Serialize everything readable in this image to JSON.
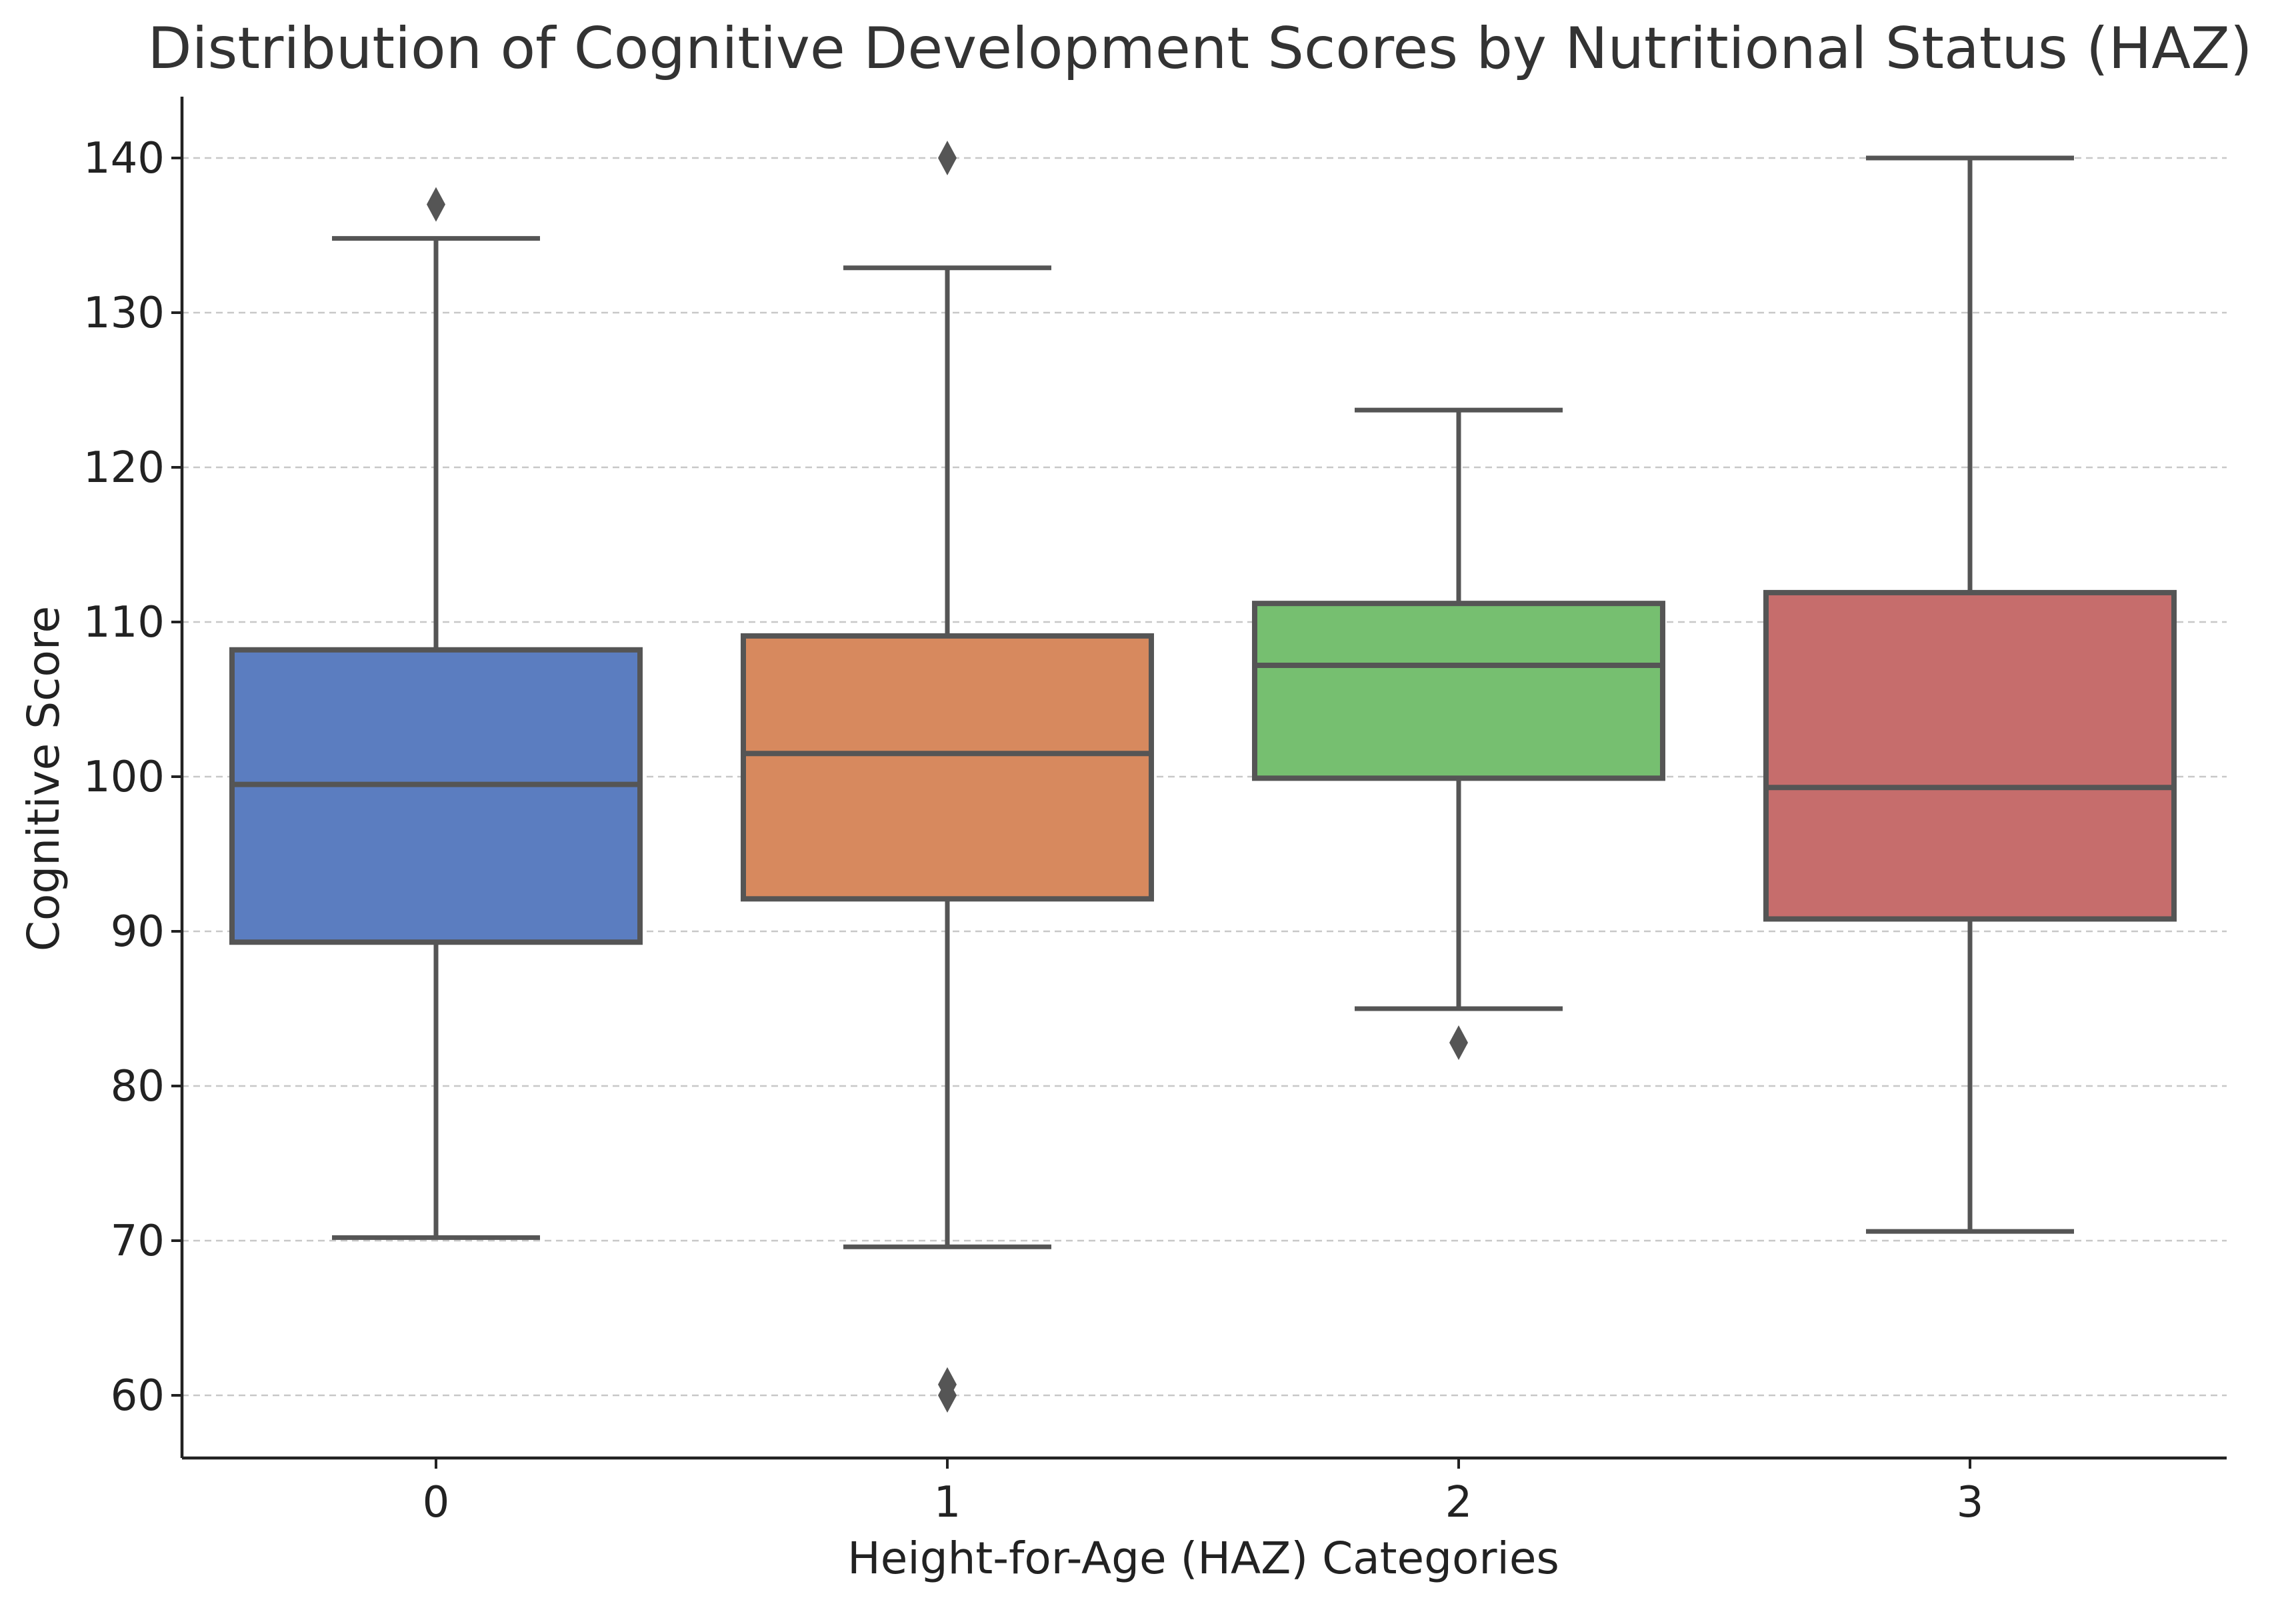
{
  "chart_data": {
    "type": "box",
    "title": "Distribution of Cognitive Development Scores by Nutritional Status (HAZ)",
    "xlabel": "Height-for-Age (HAZ) Categories",
    "ylabel": "Cognitive Score",
    "ylim": [
      56,
      144
    ],
    "yticks": [
      60,
      70,
      80,
      90,
      100,
      110,
      120,
      130,
      140
    ],
    "grid": true,
    "categories": [
      "0",
      "1",
      "2",
      "3"
    ],
    "boxes": [
      {
        "category": "0",
        "color": "#5B7DC0",
        "whisker_low": 70.2,
        "q1": 89.3,
        "median": 99.5,
        "q3": 108.2,
        "whisker_high": 134.8,
        "outliers": [
          137.0
        ]
      },
      {
        "category": "1",
        "color": "#D7895E",
        "whisker_low": 69.6,
        "q1": 92.1,
        "median": 101.5,
        "q3": 109.1,
        "whisker_high": 132.9,
        "outliers": [
          140.0,
          60.7,
          60.0
        ]
      },
      {
        "category": "2",
        "color": "#76BF70",
        "whisker_low": 85.0,
        "q1": 99.9,
        "median": 107.2,
        "q3": 111.2,
        "whisker_high": 123.7,
        "outliers": [
          82.8
        ]
      },
      {
        "category": "3",
        "color": "#C66D6C",
        "whisker_low": 70.6,
        "q1": 90.8,
        "median": 99.3,
        "q3": 111.9,
        "whisker_high": 140.0,
        "outliers": []
      }
    ]
  }
}
